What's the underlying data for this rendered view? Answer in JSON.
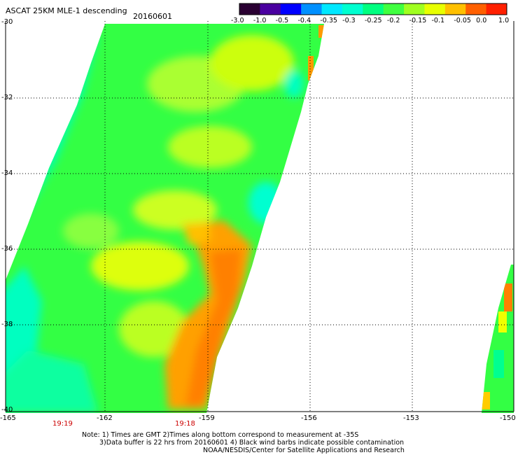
{
  "header": {
    "title": "ASCAT 25KM MLE-1 descending",
    "date": "20160601"
  },
  "colorbar": {
    "labels": [
      "-3.0",
      "-1.0",
      "-0.5",
      "-0.4",
      "-0.35",
      "-0.3",
      "-0.25",
      "-0.2",
      "-0.15",
      "-0.1",
      "-0.05",
      "0.0",
      "1.0"
    ],
    "colors": [
      "#2a0032",
      "#4a00a0",
      "#0000ff",
      "#0090ff",
      "#00e8ff",
      "#00ffd0",
      "#00ff80",
      "#40ff40",
      "#a0ff20",
      "#e8ff00",
      "#ffc000",
      "#ff6000",
      "#ff2000"
    ]
  },
  "axes": {
    "x_ticks": [
      "-165",
      "-162",
      "-159",
      "-156",
      "-153",
      "-150"
    ],
    "y_ticks": [
      "-30",
      "-32",
      "-34",
      "-36",
      "-38",
      "-40"
    ]
  },
  "times": [
    "19:19",
    "19:18"
  ],
  "notes": [
    "Note: 1) Times are GMT 2)Times along bottom correspond to measurement at -35S",
    "3)Data buffer is 22 hrs from 20160601 4) Black wind barbs indicate possible contamination",
    "NOAA/NESDIS/Center for Satellite Applications and Research"
  ]
}
